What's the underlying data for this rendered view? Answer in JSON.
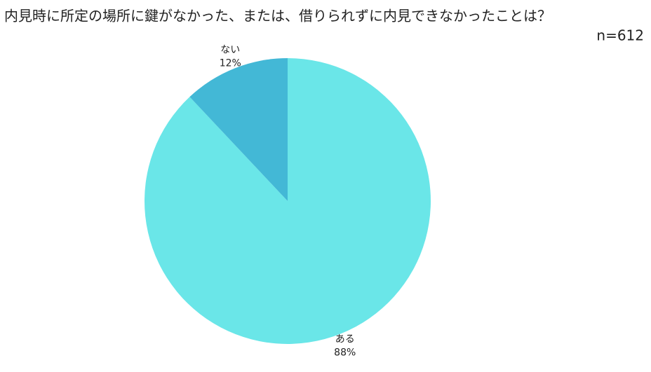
{
  "chart_data": {
    "type": "pie",
    "title": "内見時に所定の場所に鍵がなかった、または、借りられずに内見できなかったことは？",
    "subtitle": "n=612",
    "categories": [
      "ある",
      "ない"
    ],
    "values": [
      88,
      12
    ],
    "value_labels": [
      "88%",
      "12%"
    ],
    "colors": [
      "#6ae6e8",
      "#43b8d6"
    ]
  }
}
